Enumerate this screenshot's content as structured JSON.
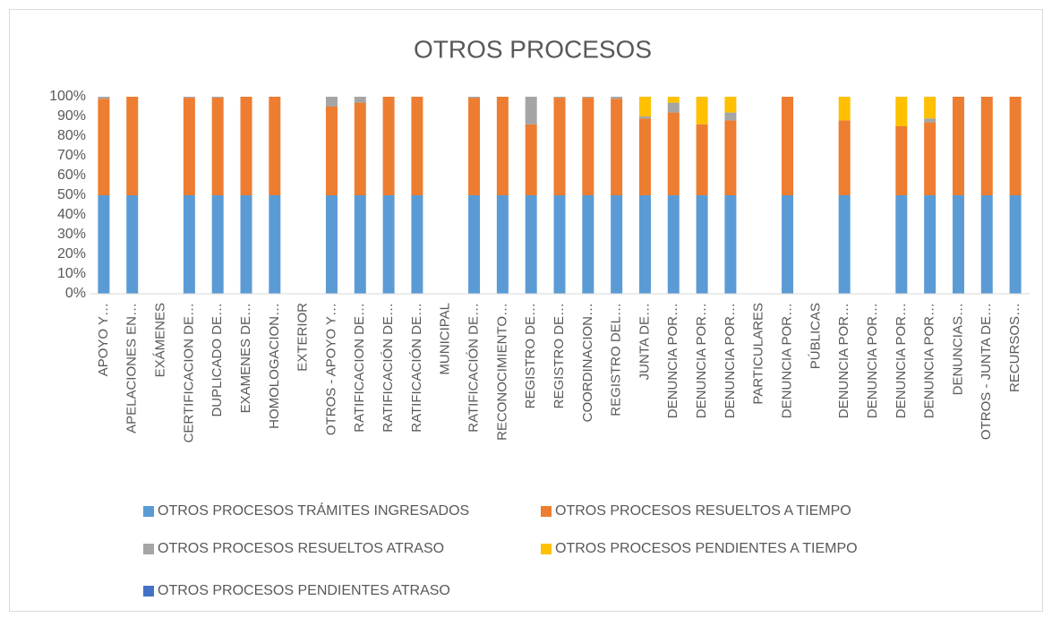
{
  "chart_data": {
    "type": "stacked_bar",
    "title": "OTROS PROCESOS",
    "categories": [
      "APOYO Y…",
      "APELACIONES EN…",
      "EXÁMENES",
      "CERTIFICACION DE…",
      "DUPLICADO DE…",
      "EXAMENES DE…",
      "HOMOLOGACION…",
      "EXTERIOR",
      "OTROS - APOYO Y…",
      "RATIFICACION DE…",
      "RATIFICACIÓN DE…",
      "RATIFICACIÓN DE…",
      "MUNICIPAL",
      "RATIFICACIÓN DE…",
      "RECONOCIMIENTO…",
      "REGISTRO DE…",
      "REGISTRO DE…",
      "COORDINACION…",
      "REGISTRO DEL…",
      "JUNTA DE…",
      "DENUNCIA POR…",
      "DENUNCIA POR…",
      "DENUNCIA POR…",
      "PARTICULARES",
      "DENUNCIA POR…",
      "PÚBLICAS",
      "DENUNCIA POR…",
      "DENUNCIA POR…",
      "DENUNCIA POR…",
      "DENUNCIA POR…",
      "DENUNCIAS…",
      "OTROS - JUNTA DE…",
      "RECURSOS…"
    ],
    "series": [
      {
        "name": "OTROS PROCESOS TRÁMITES INGRESADOS",
        "color": "#5b9bd5",
        "values": [
          50,
          50,
          0,
          50,
          50,
          50,
          50,
          0,
          50,
          50,
          50,
          50,
          0,
          50,
          50,
          50,
          50,
          50,
          50,
          50,
          50,
          50,
          50,
          0,
          50,
          0,
          50,
          0,
          50,
          50,
          50,
          50,
          50
        ]
      },
      {
        "name": "OTROS PROCESOS RESUELTOS A TIEMPO",
        "color": "#ed7d31",
        "values": [
          49,
          50,
          0,
          49.5,
          49.5,
          50,
          50,
          0,
          45,
          47,
          50,
          50,
          0,
          49.5,
          50,
          36,
          49.5,
          49.5,
          49,
          39,
          42,
          36,
          38,
          0,
          50,
          0,
          38,
          0,
          35,
          37,
          50,
          50,
          50
        ]
      },
      {
        "name": "OTROS PROCESOS RESUELTOS ATRASO",
        "color": "#a5a5a5",
        "values": [
          1,
          0,
          0,
          0.5,
          0.5,
          0,
          0,
          0,
          5,
          3,
          0,
          0,
          0,
          0.5,
          0,
          14,
          0.5,
          0.5,
          1,
          1,
          5,
          0,
          4,
          0,
          0,
          0,
          0,
          0,
          0,
          2,
          0,
          0,
          0
        ]
      },
      {
        "name": "OTROS PROCESOS PENDIENTES A TIEMPO",
        "color": "#ffc000",
        "values": [
          0,
          0,
          0,
          0,
          0,
          0,
          0,
          0,
          0,
          0,
          0,
          0,
          0,
          0,
          0,
          0,
          0,
          0,
          0,
          10,
          3,
          14,
          8,
          0,
          0,
          0,
          12,
          0,
          15,
          11,
          0,
          0,
          0
        ]
      },
      {
        "name": "OTROS PROCESOS PENDIENTES ATRASO",
        "color": "#4472c4",
        "values": [
          0,
          0,
          0,
          0,
          0,
          0,
          0,
          0,
          0,
          0,
          0,
          0,
          0,
          0,
          0,
          0,
          0,
          0,
          0,
          0,
          0,
          0,
          0,
          0,
          0,
          0,
          0,
          0,
          0,
          0,
          0,
          0,
          0
        ]
      }
    ],
    "ylim": [
      0,
      100
    ],
    "yticks": [
      {
        "value": 0,
        "label": "0%"
      },
      {
        "value": 10,
        "label": "10%"
      },
      {
        "value": 20,
        "label": "20%"
      },
      {
        "value": 30,
        "label": "30%"
      },
      {
        "value": 40,
        "label": "40%"
      },
      {
        "value": 50,
        "label": "50%"
      },
      {
        "value": 60,
        "label": "60%"
      },
      {
        "value": 70,
        "label": "70%"
      },
      {
        "value": 80,
        "label": "80%"
      },
      {
        "value": 90,
        "label": "90%"
      },
      {
        "value": 100,
        "label": "100%"
      }
    ],
    "grid": false,
    "legend": "bottom"
  }
}
